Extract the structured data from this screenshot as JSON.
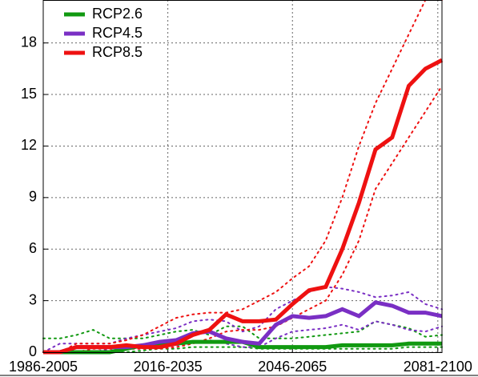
{
  "chart_data": {
    "type": "line",
    "x": [
      1995,
      1999,
      2003,
      2007,
      2011,
      2015,
      2019,
      2023,
      2027,
      2031,
      2035,
      2039,
      2043,
      2047,
      2051,
      2055,
      2059,
      2063,
      2067,
      2071,
      2075,
      2079,
      2083,
      2087,
      2091
    ],
    "xlim": [
      1995,
      2091
    ],
    "xticks": [
      {
        "value": 1995,
        "label": "1986-2005"
      },
      {
        "value": 2025,
        "label": "2016-2035"
      },
      {
        "value": 2055,
        "label": "2046-2065"
      },
      {
        "value": 2090,
        "label": "2081-2100"
      }
    ],
    "ylim": [
      0,
      20.5
    ],
    "yticks": [
      0,
      3,
      6,
      9,
      12,
      15,
      18
    ],
    "grid": true,
    "legend": "upper-left",
    "series": [
      {
        "name": "RCP2.6",
        "color": "#119911",
        "values": [
          0,
          0,
          0,
          0,
          0,
          0.2,
          0.4,
          0.4,
          0.5,
          0.6,
          0.6,
          0.6,
          0.6,
          0.3,
          0.3,
          0.3,
          0.3,
          0.3,
          0.4,
          0.4,
          0.4,
          0.4,
          0.5,
          0.5,
          0.5
        ],
        "upper": [
          0.8,
          0.8,
          1.0,
          1.3,
          0.8,
          0.8,
          0.8,
          1.0,
          1.2,
          1.3,
          1.0,
          1.5,
          1.5,
          0.8,
          0.8,
          0.8,
          0.9,
          1.0,
          1.1,
          1.2,
          1.8,
          1.6,
          1.4,
          0.9,
          1.0
        ],
        "lower": [
          0,
          0,
          0,
          0,
          0,
          0,
          0.1,
          0.2,
          0.2,
          0.3,
          0.3,
          0.3,
          0.3,
          0.2,
          0.2,
          0.2,
          0.2,
          0.2,
          0.2,
          0.2,
          0.2,
          0.2,
          0.3,
          0.3,
          0.3
        ]
      },
      {
        "name": "RCP4.5",
        "color": "#7a2fc4",
        "values": [
          0,
          0,
          0.3,
          0.3,
          0.3,
          0.3,
          0.4,
          0.6,
          0.7,
          1.1,
          1.2,
          0.8,
          0.6,
          0.5,
          1.6,
          2.1,
          2.0,
          2.1,
          2.5,
          2.1,
          2.9,
          2.7,
          2.3,
          2.3,
          2.1
        ],
        "upper": [
          0,
          0.5,
          0.5,
          0.5,
          0.5,
          0.8,
          1.0,
          1.2,
          1.4,
          1.8,
          1.9,
          1.8,
          1.2,
          1.5,
          2.5,
          3.0,
          3.5,
          3.8,
          3.7,
          3.5,
          3.2,
          3.3,
          3.5,
          2.8,
          2.5
        ],
        "lower": [
          0,
          0,
          0,
          0,
          0.2,
          0.2,
          0.2,
          0.3,
          0.4,
          0.6,
          0.7,
          0.5,
          0.3,
          0.3,
          0.8,
          1.2,
          1.3,
          1.4,
          1.6,
          1.3,
          1.8,
          1.6,
          1.3,
          1.2,
          1.5
        ]
      },
      {
        "name": "RCP8.5",
        "color": "#ee1111",
        "values": [
          0,
          0,
          0.3,
          0.3,
          0.3,
          0.4,
          0.3,
          0.3,
          0.5,
          1.0,
          1.3,
          2.2,
          1.8,
          1.8,
          1.9,
          2.8,
          3.6,
          3.8,
          6.0,
          8.7,
          11.8,
          12.5,
          15.5,
          16.5,
          17.0
        ],
        "upper": [
          0,
          0,
          0.5,
          0.5,
          0.5,
          0.7,
          1.0,
          1.5,
          2.0,
          2.2,
          2.3,
          2.3,
          2.5,
          3.0,
          3.5,
          4.3,
          5.0,
          6.5,
          9.0,
          12.0,
          14.5,
          16.5,
          18.5,
          20.5,
          20.5
        ],
        "lower": [
          0,
          0,
          0,
          0.2,
          0.2,
          0.2,
          0.2,
          0.2,
          0.3,
          0.5,
          0.8,
          1.2,
          1.3,
          1.3,
          1.5,
          2.0,
          2.5,
          3.0,
          4.5,
          6.5,
          9.5,
          11.0,
          12.5,
          14.0,
          15.5
        ]
      }
    ]
  }
}
